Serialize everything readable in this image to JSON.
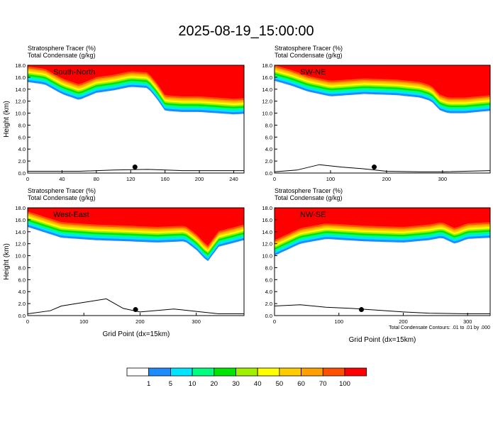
{
  "figure": {
    "title": "2025-08-19_15:00:00",
    "contour_note": "Total Condensate Contours: .01 to .01 by .000",
    "xlabel": "Grid Point (dx=15km)"
  },
  "colorbar": {
    "levels": [
      "1",
      "5",
      "10",
      "20",
      "30",
      "40",
      "50",
      "60",
      "70",
      "100"
    ],
    "colors": [
      "#ffffff",
      "#1e8cff",
      "#00e5ff",
      "#00ff7f",
      "#00e600",
      "#a0f000",
      "#ffff00",
      "#ffcc00",
      "#ffa000",
      "#ff5000",
      "#ff0000"
    ]
  },
  "chart_data": [
    {
      "type": "heatmap",
      "panel": "South-North",
      "label1": "Stratosphere Tracer    (%)",
      "label2": "Total Condensate    (g/kg)",
      "ylabel": "Height (km)",
      "xlabel": "",
      "xlim": [
        0,
        252
      ],
      "ylim": [
        0,
        18
      ],
      "xticks": [
        "0",
        "40",
        "80",
        "120",
        "160",
        "200",
        "240"
      ],
      "xtick_values": [
        0,
        40,
        80,
        120,
        160,
        200,
        240
      ],
      "yticks": [
        "0.0",
        "2.0",
        "4.0",
        "6.0",
        "8.0",
        "10.0",
        "12.0",
        "14.0",
        "16.0",
        "18.0"
      ],
      "tracer_base_km": [
        [
          0,
          15.2
        ],
        [
          20,
          14.8
        ],
        [
          40,
          13.2
        ],
        [
          60,
          12.2
        ],
        [
          80,
          13.4
        ],
        [
          100,
          13.8
        ],
        [
          120,
          14.4
        ],
        [
          140,
          14.2
        ],
        [
          150,
          12.5
        ],
        [
          160,
          10.4
        ],
        [
          180,
          10.2
        ],
        [
          200,
          10.2
        ],
        [
          220,
          10.0
        ],
        [
          240,
          9.8
        ],
        [
          252,
          9.9
        ]
      ],
      "terrain_km": [
        [
          0,
          0.3
        ],
        [
          60,
          0.3
        ],
        [
          100,
          0.5
        ],
        [
          140,
          0.6
        ],
        [
          180,
          0.4
        ],
        [
          252,
          0.4
        ]
      ],
      "marker_x": 125
    },
    {
      "type": "heatmap",
      "panel": "SW-NE",
      "label1": "Stratosphere Tracer    (%)",
      "label2": "Total Condensate    (g/kg)",
      "ylabel": "",
      "xlabel": "",
      "xlim": [
        0,
        385
      ],
      "ylim": [
        0,
        18
      ],
      "xticks": [
        "0",
        "100",
        "200",
        "300"
      ],
      "xtick_values": [
        0,
        100,
        200,
        300
      ],
      "yticks": [
        "0.0",
        "2.0",
        "4.0",
        "6.0",
        "8.0",
        "10.0",
        "12.0",
        "14.0",
        "16.0",
        "18.0"
      ],
      "tracer_base_km": [
        [
          0,
          15.4
        ],
        [
          30,
          14.6
        ],
        [
          60,
          13.6
        ],
        [
          100,
          12.8
        ],
        [
          160,
          13.2
        ],
        [
          220,
          13.0
        ],
        [
          260,
          12.6
        ],
        [
          280,
          12.0
        ],
        [
          295,
          10.5
        ],
        [
          310,
          10.0
        ],
        [
          340,
          10.0
        ],
        [
          385,
          10.4
        ]
      ],
      "terrain_km": [
        [
          0,
          0.2
        ],
        [
          40,
          0.5
        ],
        [
          80,
          1.4
        ],
        [
          120,
          1.0
        ],
        [
          160,
          0.7
        ],
        [
          200,
          0.3
        ],
        [
          260,
          0.2
        ],
        [
          300,
          0.2
        ],
        [
          385,
          0.4
        ]
      ],
      "marker_x": 178
    },
    {
      "type": "heatmap",
      "panel": "West-East",
      "label1": "Stratosphere Tracer    (%)",
      "label2": "Total Condensate    (g/kg)",
      "ylabel": "Height (km)",
      "xlabel": "",
      "xlim": [
        0,
        385
      ],
      "ylim": [
        0,
        18
      ],
      "xticks": [
        "0",
        "100",
        "200",
        "300"
      ],
      "xtick_values": [
        0,
        100,
        200,
        300
      ],
      "yticks": [
        "0.0",
        "2.0",
        "4.0",
        "6.0",
        "8.0",
        "10.0",
        "12.0",
        "14.0",
        "16.0",
        "18.0"
      ],
      "tracer_base_km": [
        [
          0,
          14.8
        ],
        [
          60,
          13.0
        ],
        [
          120,
          12.6
        ],
        [
          180,
          12.4
        ],
        [
          230,
          12.2
        ],
        [
          280,
          12.4
        ],
        [
          300,
          11.0
        ],
        [
          320,
          9.0
        ],
        [
          340,
          11.5
        ],
        [
          385,
          12.6
        ]
      ],
      "terrain_km": [
        [
          0,
          0.3
        ],
        [
          40,
          0.8
        ],
        [
          60,
          1.6
        ],
        [
          100,
          2.2
        ],
        [
          140,
          2.8
        ],
        [
          170,
          1.2
        ],
        [
          200,
          0.6
        ],
        [
          260,
          1.1
        ],
        [
          300,
          0.7
        ],
        [
          340,
          0.3
        ],
        [
          385,
          0.3
        ]
      ],
      "marker_x": 192
    },
    {
      "type": "heatmap",
      "panel": "NW-SE",
      "label1": "Stratosphere Tracer    (%)",
      "label2": "Total Condensate    (g/kg)",
      "ylabel": "",
      "xlabel": "",
      "xlim": [
        0,
        335
      ],
      "ylim": [
        0,
        18
      ],
      "xticks": [
        "0",
        "100",
        "200",
        "300"
      ],
      "xtick_values": [
        0,
        100,
        200,
        300
      ],
      "yticks": [
        "0.0",
        "2.0",
        "4.0",
        "6.0",
        "8.0",
        "10.0",
        "12.0",
        "14.0",
        "16.0",
        "18.0"
      ],
      "tracer_base_km": [
        [
          0,
          10.0
        ],
        [
          40,
          12.0
        ],
        [
          80,
          12.8
        ],
        [
          140,
          12.4
        ],
        [
          200,
          12.2
        ],
        [
          240,
          12.6
        ],
        [
          260,
          13.0
        ],
        [
          280,
          12.0
        ],
        [
          300,
          12.8
        ],
        [
          335,
          13.0
        ]
      ],
      "terrain_km": [
        [
          0,
          1.6
        ],
        [
          40,
          1.8
        ],
        [
          80,
          1.4
        ],
        [
          120,
          1.2
        ],
        [
          160,
          0.9
        ],
        [
          200,
          0.6
        ],
        [
          240,
          0.4
        ],
        [
          300,
          0.3
        ],
        [
          335,
          0.3
        ]
      ],
      "marker_x": 135
    }
  ]
}
